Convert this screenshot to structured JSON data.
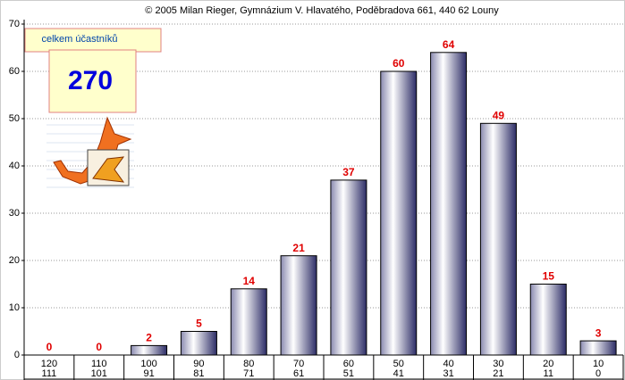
{
  "chart_data": {
    "type": "bar",
    "title": "© 2005 Milan Rieger, Gymnázium V. Hlavatého, Poděbradova 661, 440 62 Louny",
    "categories": [
      [
        "120",
        "111"
      ],
      [
        "110",
        "101"
      ],
      [
        "100",
        "91"
      ],
      [
        "90",
        "81"
      ],
      [
        "80",
        "71"
      ],
      [
        "70",
        "61"
      ],
      [
        "60",
        "51"
      ],
      [
        "50",
        "41"
      ],
      [
        "40",
        "31"
      ],
      [
        "30",
        "21"
      ],
      [
        "20",
        "11"
      ],
      [
        "10",
        "0"
      ]
    ],
    "values": [
      0,
      0,
      2,
      5,
      14,
      21,
      37,
      60,
      64,
      49,
      15,
      3
    ],
    "ylim": [
      0,
      70
    ],
    "yticks": [
      0,
      10,
      20,
      30,
      40,
      50,
      60,
      70
    ],
    "grid": true,
    "summary_label": "celkem účastníků",
    "summary_value": 270
  }
}
